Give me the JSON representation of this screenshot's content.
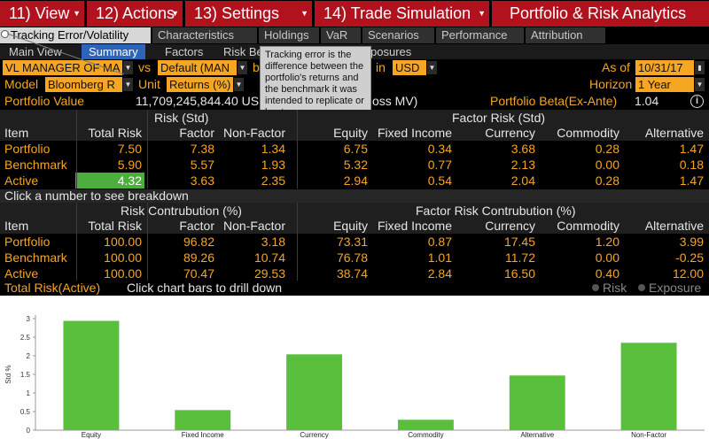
{
  "menu": {
    "view": "11) View",
    "actions": "12) Actions",
    "settings": "13) Settings",
    "trade": "14) Trade Simulation",
    "title": "Portfolio & Risk Analytics"
  },
  "tabs": {
    "tracking": "Tracking Error/Volatility",
    "characteristics": "Characteristics",
    "holdings": "Holdings",
    "var": "VaR",
    "scenarios": "Scenarios",
    "performance": "Performance",
    "attribution": "Attribution"
  },
  "subtabs": {
    "main_view": "Main View",
    "summary": "Summary",
    "factors": "Factors",
    "risk_b": "Risk Be",
    "exposures": "posures"
  },
  "filters": {
    "portfolio": "VL MANAGER OF MA",
    "vs": "vs",
    "benchmark": "Default (MAN",
    "b_partial": "b",
    "in": "in",
    "currency": "USD",
    "as_of_label": "As of",
    "as_of": "10/31/17",
    "model_label": "Model",
    "model": "Bloomberg R",
    "unit_label": "Unit",
    "unit": "Returns (%)",
    "horizon_label": "Horizon",
    "horizon": "1 Year"
  },
  "portfolio_info": {
    "value_label": "Portfolio Value",
    "value": "11,709,245,844.40 USD",
    "gross": "oss MV)",
    "beta_label": "Portfolio Beta(Ex-Ante)",
    "beta": "1.04",
    "info_icon": "i"
  },
  "tooltip": "Tracking error is the difference between the portfolio's returns and the benchmark it was intended to replicate or beat.",
  "risk_table": {
    "group_risk": "Risk (Std)",
    "group_factor": "Factor Risk (Std)",
    "headers": [
      "Item",
      "Total Risk",
      "Factor",
      "Non-Factor",
      "Equity",
      "Fixed Income",
      "Currency",
      "Commodity",
      "Alternative"
    ],
    "rows": [
      [
        "Portfolio",
        "7.50",
        "7.38",
        "1.34",
        "6.75",
        "0.34",
        "3.68",
        "0.28",
        "1.47"
      ],
      [
        "Benchmark",
        "5.90",
        "5.57",
        "1.93",
        "5.32",
        "0.77",
        "2.13",
        "0.00",
        "0.18"
      ],
      [
        "Active",
        "4.32",
        "3.63",
        "2.35",
        "2.94",
        "0.54",
        "2.04",
        "0.28",
        "1.47"
      ]
    ],
    "hint": "Click a number to see breakdown"
  },
  "contrib_table": {
    "group_risk": "Risk Contrubution (%)",
    "group_factor": "Factor Risk Contrubution (%)",
    "headers": [
      "Item",
      "Total Risk",
      "Factor",
      "Non-Factor",
      "Equity",
      "Fixed Income",
      "Currency",
      "Commodity",
      "Alternative"
    ],
    "rows": [
      [
        "Portfolio",
        "100.00",
        "96.82",
        "3.18",
        "73.31",
        "0.87",
        "17.45",
        "1.20",
        "3.99"
      ],
      [
        "Benchmark",
        "100.00",
        "89.26",
        "10.74",
        "76.78",
        "1.01",
        "11.72",
        "0.00",
        "-0.25"
      ],
      [
        "Active",
        "100.00",
        "70.47",
        "29.53",
        "38.74",
        "2.84",
        "16.50",
        "0.40",
        "12.00"
      ]
    ]
  },
  "chart_header": {
    "title": "Total Risk(Active)",
    "hint": "Click chart bars to drill down",
    "opt_risk": "Risk",
    "opt_exposure": "Exposure"
  },
  "chart_data": {
    "type": "bar",
    "categories": [
      "Equity",
      "Fixed Income",
      "Currency",
      "Commodity",
      "Alternative",
      "Non-Factor"
    ],
    "values": [
      2.94,
      0.54,
      2.04,
      0.28,
      1.47,
      2.35
    ],
    "title": "",
    "xlabel": "",
    "ylabel": "Std %",
    "ylim": [
      0,
      3
    ],
    "yticks": [
      "0",
      "0.5",
      "1",
      "1.5",
      "2",
      "2.5",
      "3"
    ],
    "grid": false,
    "bar_color": "#5bbf3e"
  },
  "colors": {
    "menu_red": "#b1121d",
    "orange": "#f5a623",
    "active_green": "#4cae3c",
    "summary_blue": "#2b64b8"
  }
}
